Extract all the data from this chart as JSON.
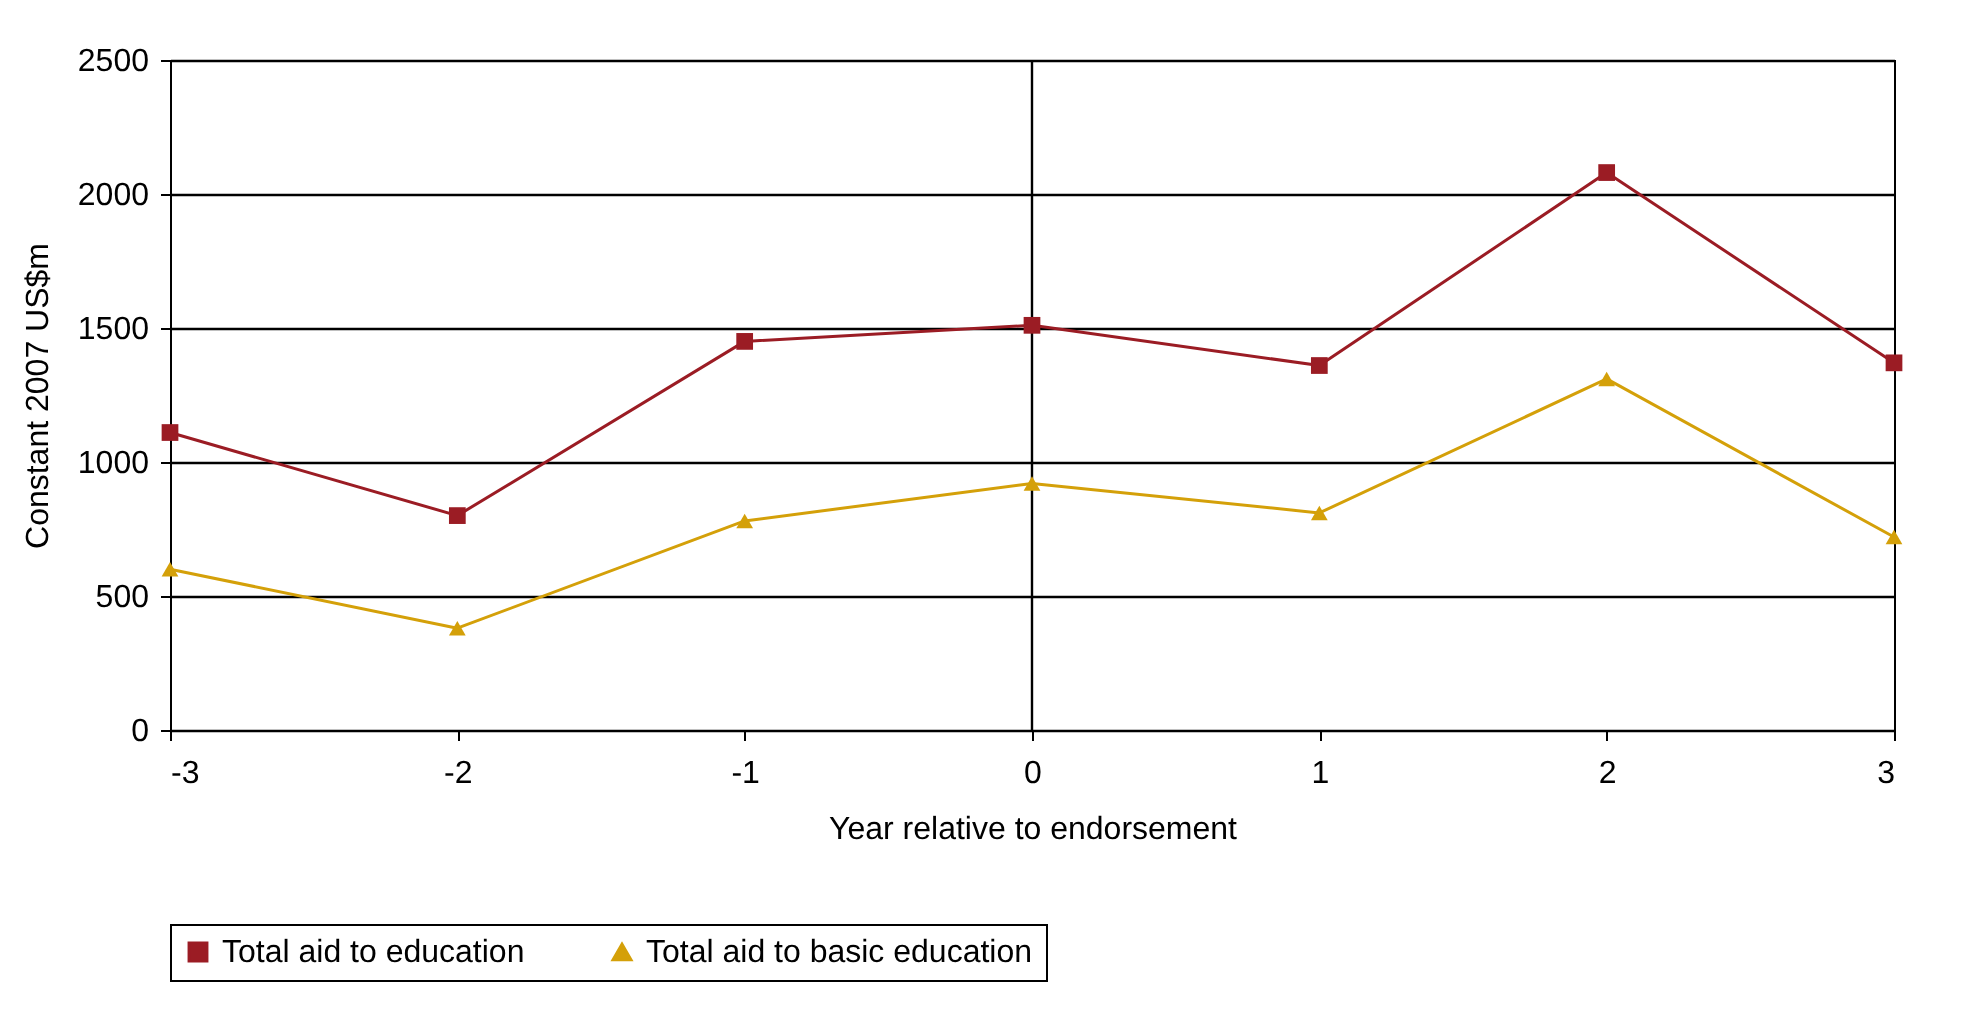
{
  "chart_data": {
    "type": "line",
    "xlabel": "Year relative to endorsement",
    "ylabel": "Constant 2007 US$m",
    "x": [
      -3,
      -2,
      -1,
      0,
      1,
      2,
      3
    ],
    "series": [
      {
        "name": "Total aid to education",
        "color": "#9b1c24",
        "marker": "square",
        "values": [
          1110,
          800,
          1450,
          1510,
          1360,
          2080,
          1370
        ]
      },
      {
        "name": "Total aid to basic education",
        "color": "#d4a009",
        "marker": "triangle",
        "values": [
          600,
          380,
          780,
          920,
          810,
          1310,
          720
        ]
      }
    ],
    "xlim": [
      -3,
      3
    ],
    "xticks": [
      -3,
      -2,
      -1,
      0,
      1,
      2,
      3
    ],
    "ylim": [
      0,
      2500
    ],
    "yticks": [
      0,
      500,
      1000,
      1500,
      2000,
      2500
    ],
    "ref_lines": [
      {
        "axis": "x",
        "value": 0,
        "color": "#000000"
      }
    ],
    "grid": "y",
    "legend": "bottom",
    "line_style": "solid"
  }
}
